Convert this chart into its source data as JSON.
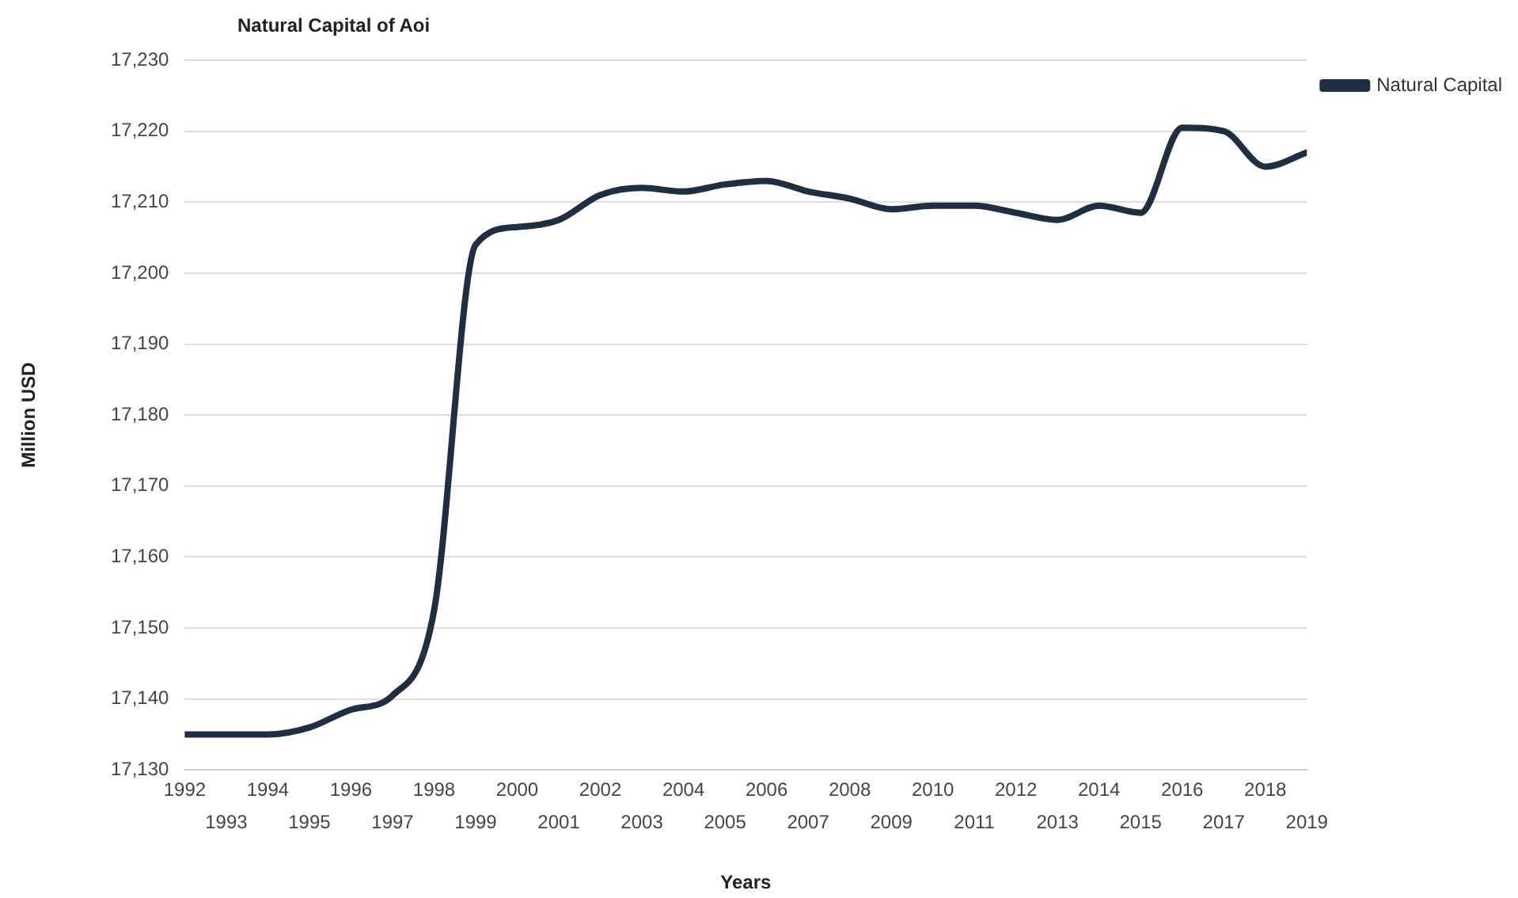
{
  "chart_data": {
    "type": "line",
    "title": "Natural Capital of Aoi",
    "xlabel": "Years",
    "ylabel": "Million USD",
    "x": [
      1992,
      1993,
      1994,
      1995,
      1996,
      1997,
      1998,
      1999,
      2000,
      2001,
      2002,
      2003,
      2004,
      2005,
      2006,
      2007,
      2008,
      2009,
      2010,
      2011,
      2012,
      2013,
      2014,
      2015,
      2016,
      2017,
      2018,
      2019
    ],
    "series": [
      {
        "name": "Natural Capital",
        "color": "#1e2f42",
        "values": [
          17135,
          17135,
          17135,
          17136,
          17138.5,
          17140.5,
          17152.5,
          17204,
          17206.5,
          17207.5,
          17211,
          17212,
          17211.5,
          17212.5,
          17213,
          17211.5,
          17210.5,
          17209,
          17209.5,
          17209.5,
          17208.5,
          17207.5,
          17209.5,
          17208.5,
          17220.5,
          17220,
          17215,
          17217
        ]
      }
    ],
    "xlim": [
      1992,
      2019
    ],
    "xticks": [
      1992,
      1994,
      1996,
      1998,
      2000,
      2002,
      2004,
      2006,
      2008,
      2010,
      2012,
      2014,
      2016,
      2018
    ],
    "x2lim": [
      1992,
      2019
    ],
    "x2ticks": [
      1993,
      1995,
      1997,
      1999,
      2001,
      2003,
      2005,
      2007,
      2009,
      2011,
      2013,
      2015,
      2017,
      2019
    ],
    "ylim": [
      17130,
      17230
    ],
    "yticks": [
      {
        "value": 17130,
        "label": "17,130"
      },
      {
        "value": 17140,
        "label": "17,140"
      },
      {
        "value": 17150,
        "label": "17,150"
      },
      {
        "value": 17160,
        "label": "17,160"
      },
      {
        "value": 17170,
        "label": "17,170"
      },
      {
        "value": 17180,
        "label": "17,180"
      },
      {
        "value": 17190,
        "label": "17,190"
      },
      {
        "value": 17200,
        "label": "17,200"
      },
      {
        "value": 17210,
        "label": "17,210"
      },
      {
        "value": 17220,
        "label": "17,220"
      },
      {
        "value": 17230,
        "label": "17,230"
      }
    ],
    "grid": "y",
    "legend": "right",
    "marker": "none",
    "line_style": "solid"
  }
}
